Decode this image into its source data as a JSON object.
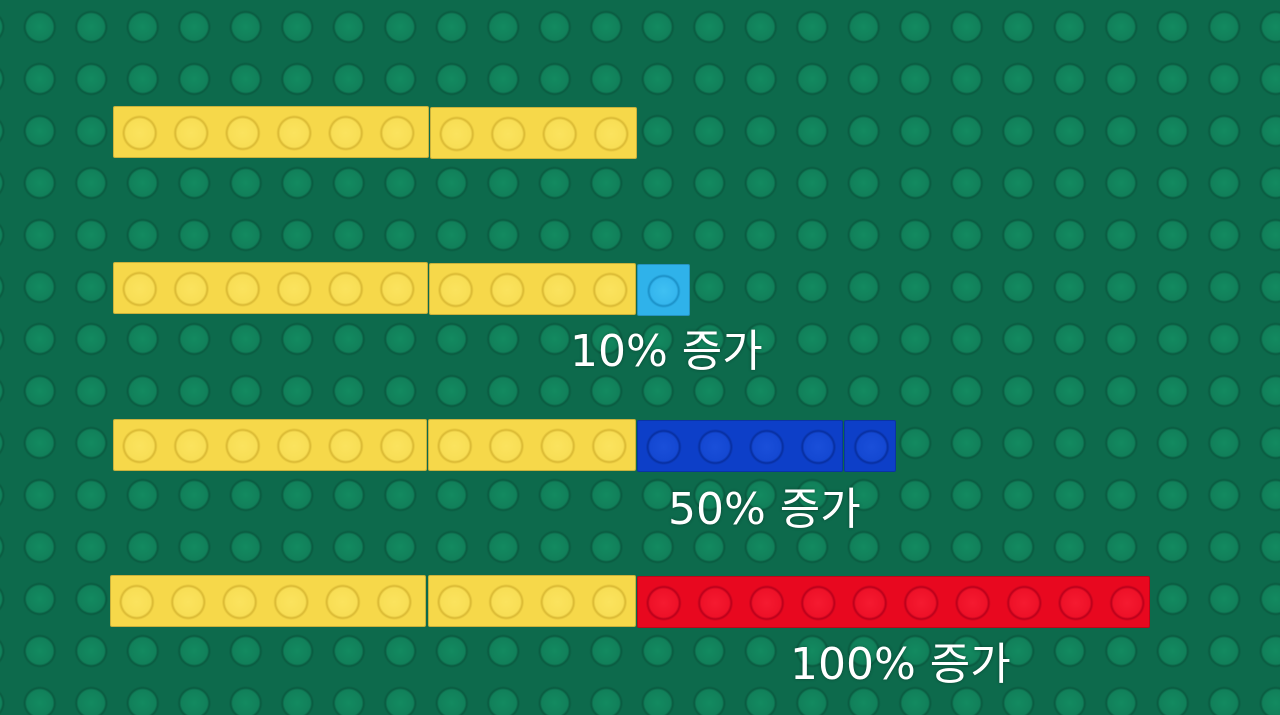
{
  "colors": {
    "baseplate": "#0d6a4c",
    "base_brick": "#f6d84a",
    "increase_10": "#2fb2ea",
    "increase_50": "#0d3fc8",
    "increase_100": "#e8081f"
  },
  "rows": [
    {
      "base_studs": 10,
      "added_studs": 0
    },
    {
      "base_studs": 10,
      "added_studs": 1,
      "label": "10% 증가"
    },
    {
      "base_studs": 10,
      "added_studs": 5,
      "label": "50% 증가"
    },
    {
      "base_studs": 10,
      "added_studs": 10,
      "label": "100% 증가"
    }
  ]
}
